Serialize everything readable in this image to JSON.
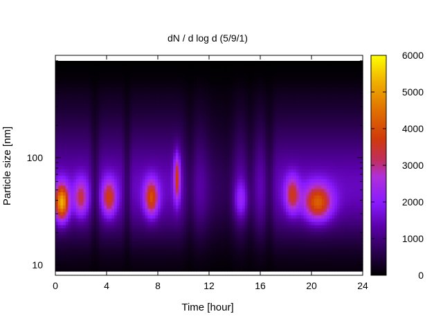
{
  "chart_data": {
    "type": "heatmap",
    "title": "dN / d log d (5/9/1)",
    "xlabel": "Time [hour]",
    "ylabel": "Particle size [nm]",
    "xlim": [
      0,
      24
    ],
    "ylim": [
      8,
      900
    ],
    "yscale": "log",
    "x_ticks": [
      0,
      4,
      8,
      12,
      16,
      20,
      24
    ],
    "x_tick_labels": [
      "0",
      "4",
      "8",
      "12",
      "16",
      "20",
      "24"
    ],
    "y_ticks": [
      10,
      100
    ],
    "y_tick_labels": [
      "10",
      "100"
    ],
    "colorbar": {
      "min": 0,
      "max": 6000,
      "ticks": [
        0,
        1000,
        2000,
        3000,
        4000,
        5000,
        6000
      ],
      "tick_labels": [
        "0",
        "1000",
        "2000",
        "3000",
        "4000",
        "5000",
        "6000"
      ],
      "colormap": [
        "#000000",
        "#4a0085",
        "#8a1aff",
        "#b83ae0",
        "#d0400e",
        "#e67a00",
        "#ffc000",
        "#ffff00"
      ]
    },
    "grid": false,
    "legend": "none",
    "mode_peaks": [
      {
        "time": 0.5,
        "diameter": 38,
        "value": 5200
      },
      {
        "time": 2.0,
        "diameter": 42,
        "value": 3200
      },
      {
        "time": 4.2,
        "diameter": 42,
        "value": 3600
      },
      {
        "time": 7.5,
        "diameter": 42,
        "value": 3900
      },
      {
        "time": 9.5,
        "diameter": 65,
        "value": 3600
      },
      {
        "time": 14.5,
        "diameter": 40,
        "value": 2300
      },
      {
        "time": 18.5,
        "diameter": 45,
        "value": 3400
      },
      {
        "time": 20.5,
        "diameter": 38,
        "value": 4200
      }
    ]
  }
}
